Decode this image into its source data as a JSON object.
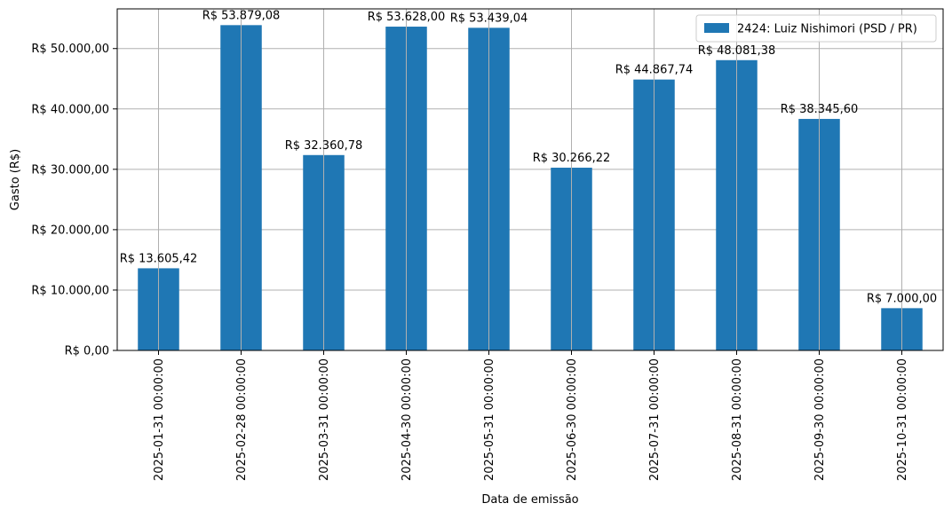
{
  "chart_data": {
    "type": "bar",
    "categories": [
      "2025-01-31 00:00:00",
      "2025-02-28 00:00:00",
      "2025-03-31 00:00:00",
      "2025-04-30 00:00:00",
      "2025-05-31 00:00:00",
      "2025-06-30 00:00:00",
      "2025-07-31 00:00:00",
      "2025-08-31 00:00:00",
      "2025-09-30 00:00:00",
      "2025-10-31 00:00:00"
    ],
    "series": [
      {
        "name": "2424: Luiz Nishimori (PSD / PR)",
        "color": "#1f77b4",
        "values": [
          13605.42,
          53879.08,
          32360.78,
          53628.0,
          53439.04,
          30266.22,
          44867.74,
          48081.38,
          38345.6,
          7000.0
        ],
        "labels": [
          "R$ 13.605,42",
          "R$ 53.879,08",
          "R$ 32.360,78",
          "R$ 53.628,00",
          "R$ 53.439,04",
          "R$ 30.266,22",
          "R$ 44.867,74",
          "R$ 48.081,38",
          "R$ 38.345,60",
          "R$ 7.000,00"
        ]
      }
    ],
    "xlabel": "Data de emissão",
    "ylabel": "Gasto (R$)",
    "ylim": [
      0,
      56573.03
    ],
    "yticks": [
      0,
      10000,
      20000,
      30000,
      40000,
      50000
    ],
    "ytick_labels": [
      "R$ 0,00",
      "R$ 10.000,00",
      "R$ 20.000,00",
      "R$ 30.000,00",
      "R$ 40.000,00",
      "R$ 50.000,00"
    ],
    "grid": true,
    "legend_position": "top-right"
  }
}
